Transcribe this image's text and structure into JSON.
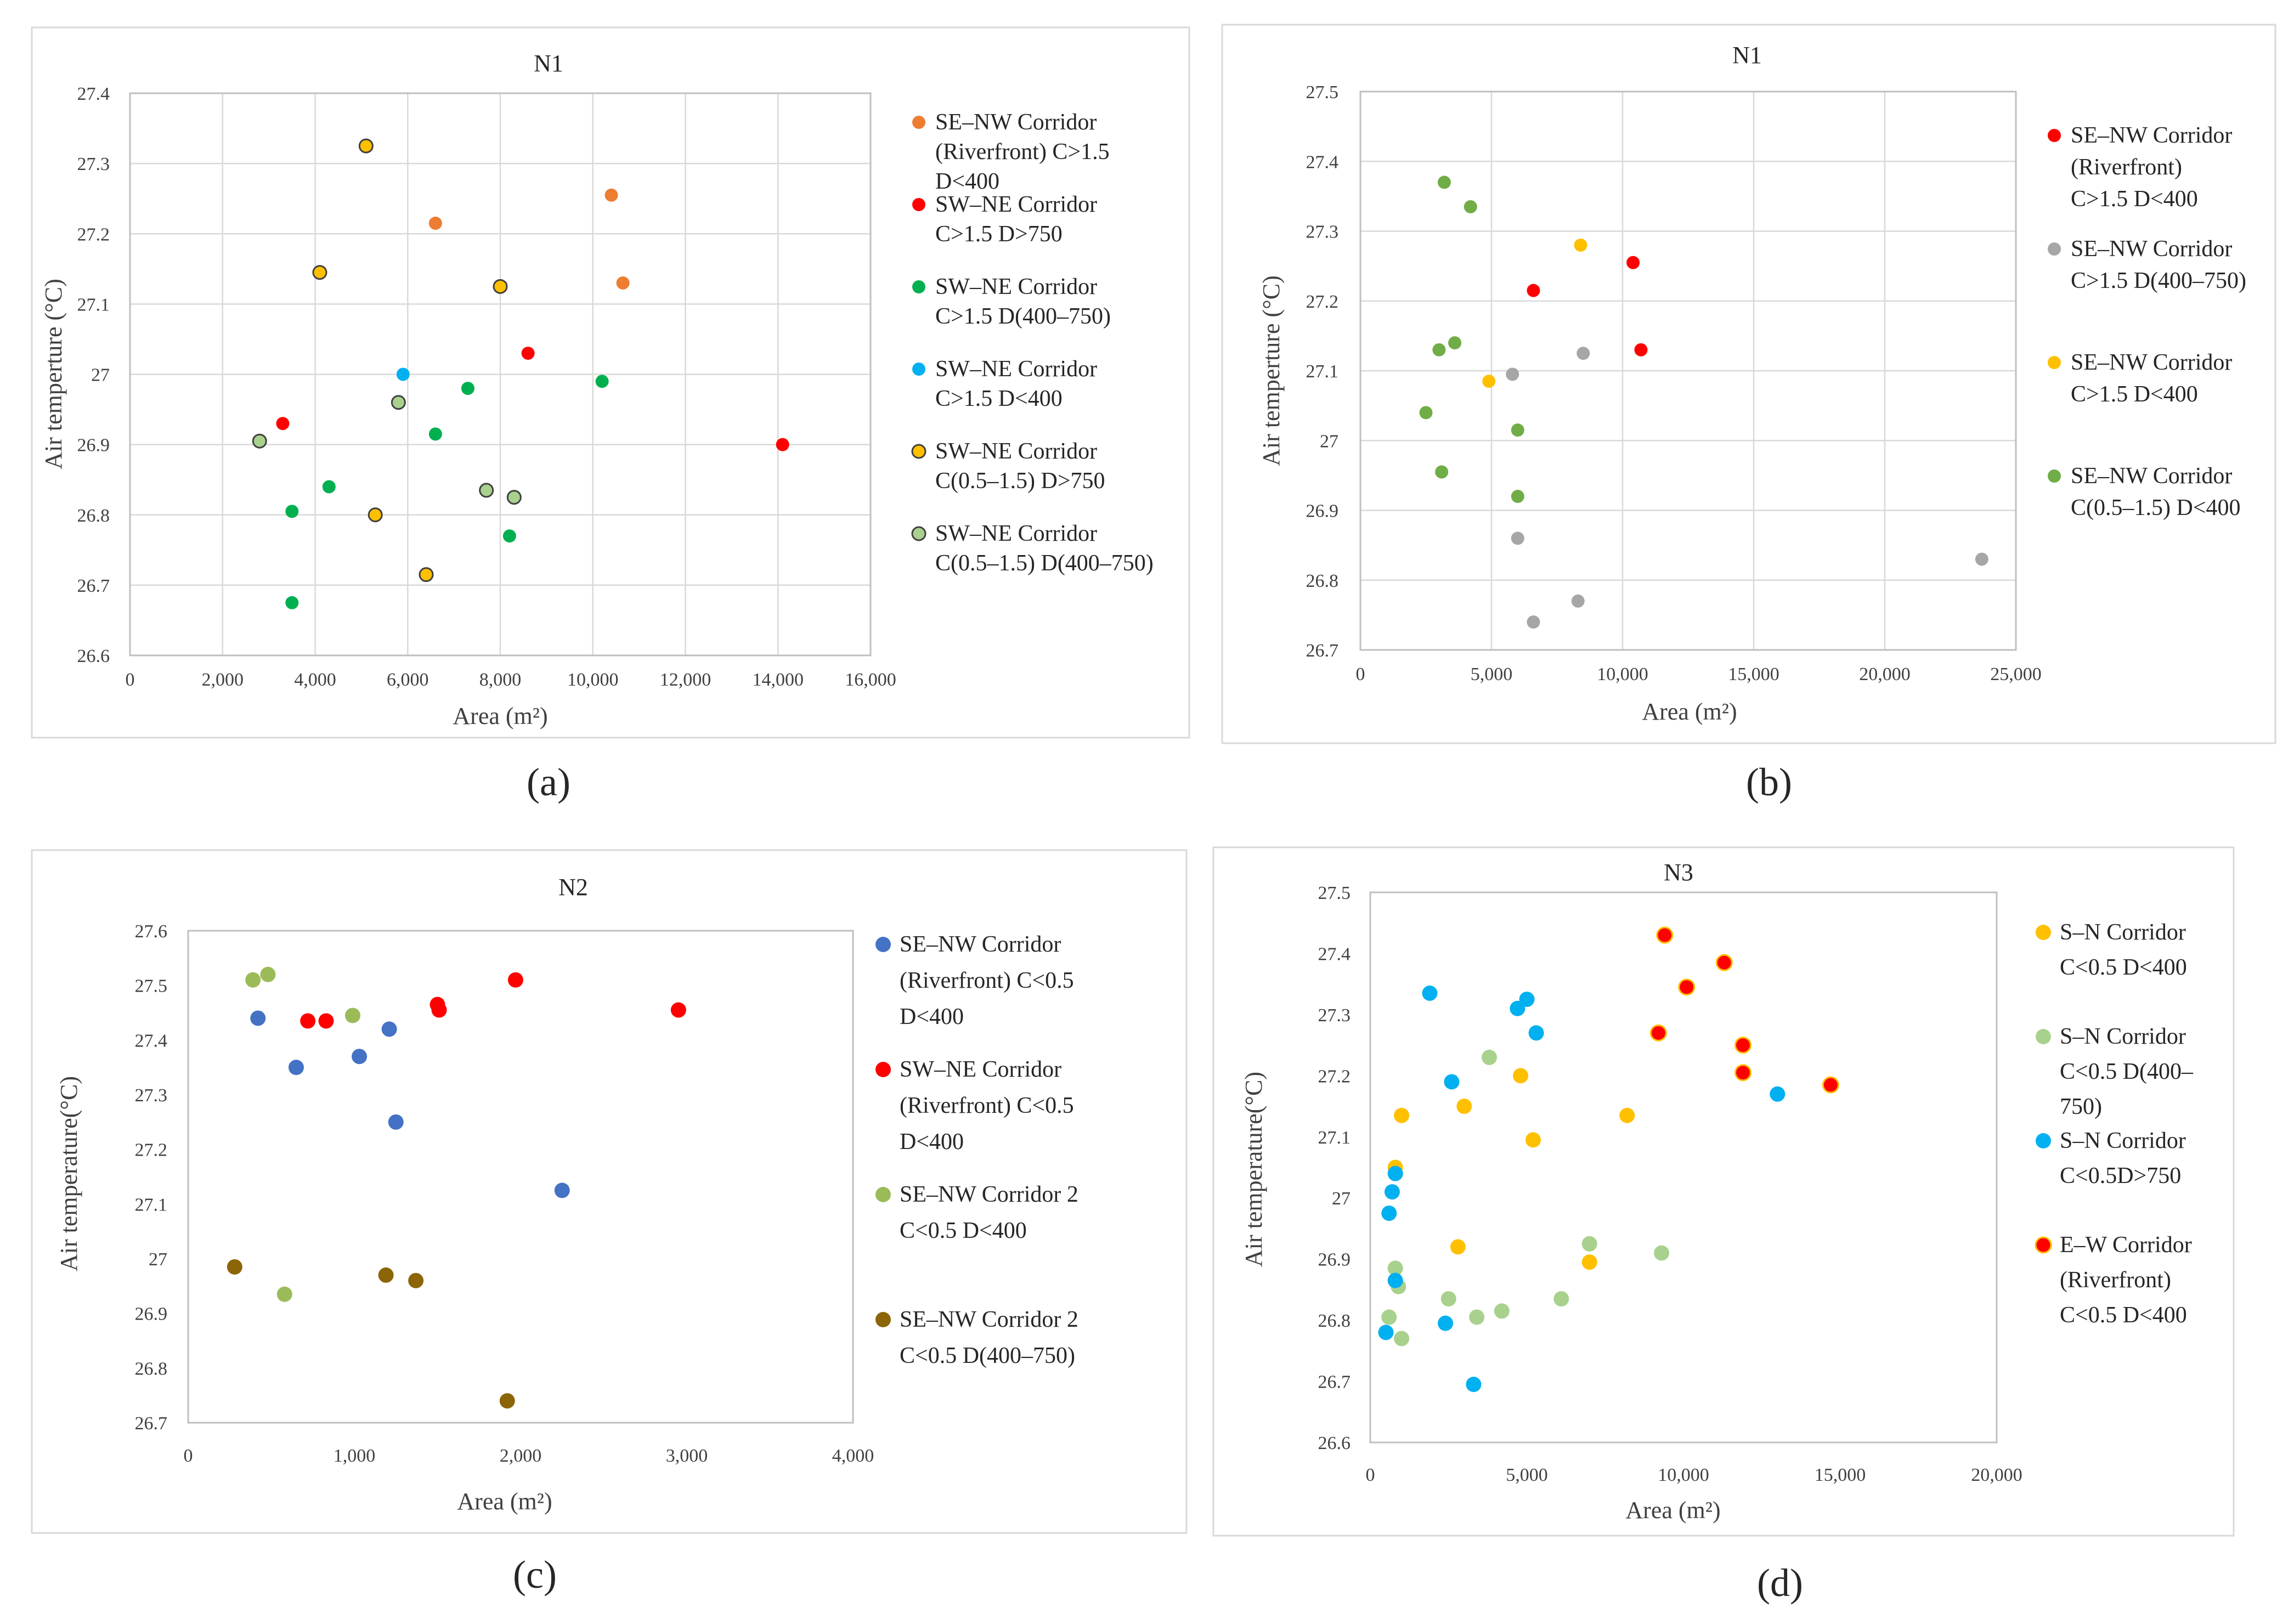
{
  "figure": {
    "captions": [
      "(a)",
      "(b)",
      "(c)",
      "(d)"
    ]
  },
  "chart_data": [
    {
      "type": "scatter",
      "caption": "(a)",
      "title": "N1",
      "xlabel": "Area  (m²)",
      "ylabel": "Air temperture (°C)",
      "xlim": [
        0,
        16000
      ],
      "ylim": [
        26.6,
        27.4
      ],
      "x_ticks": [
        0,
        2000,
        4000,
        6000,
        8000,
        10000,
        12000,
        14000,
        16000
      ],
      "x_tick_labels": [
        "0",
        "2,000",
        "4,000",
        "6,000",
        "8,000",
        "10,000",
        "12,000",
        "14,000",
        "16,000"
      ],
      "y_ticks": [
        26.6,
        26.7,
        26.8,
        26.9,
        27.0,
        27.1,
        27.2,
        27.3,
        27.4
      ],
      "y_tick_labels": [
        "26.6",
        "26.7",
        "26.8",
        "26.9",
        "27",
        "27.1",
        "27.2",
        "27.3",
        "27.4"
      ],
      "grid": true,
      "legend": "right",
      "series": [
        {
          "name": "SE–NW Corridor (Riverfront) C>1.5 D<400",
          "legend_lines": [
            "SE–NW Corridor",
            "(Riverfront) C>1.5",
            "D<400"
          ],
          "color": "#ED7D31",
          "edge": "none",
          "x": [
            6600,
            10400,
            10650
          ],
          "y": [
            27.215,
            27.255,
            27.13
          ]
        },
        {
          "name": "SW–NE Corridor C>1.5 D>750",
          "legend_lines": [
            "SW–NE Corridor",
            "C>1.5 D>750"
          ],
          "color": "#FF0000",
          "edge": "none",
          "x": [
            3300,
            8600,
            14100
          ],
          "y": [
            26.93,
            27.03,
            26.9
          ]
        },
        {
          "name": "SW–NE Corridor C>1.5 D(400–750)",
          "legend_lines": [
            "SW–NE Corridor",
            "C>1.5 D(400–750)"
          ],
          "color": "#00B050",
          "edge": "none",
          "x": [
            3500,
            3500,
            4300,
            6600,
            7300,
            8200,
            10200
          ],
          "y": [
            26.675,
            26.805,
            26.84,
            26.915,
            26.98,
            26.77,
            26.99
          ]
        },
        {
          "name": "SW–NE Corridor C>1.5 D<400",
          "legend_lines": [
            "SW–NE Corridor",
            "C>1.5 D<400"
          ],
          "color": "#00B0F0",
          "edge": "none",
          "x": [
            5900
          ],
          "y": [
            27.0
          ]
        },
        {
          "name": "SW–NE Corridor C(0.5–1.5) D>750",
          "legend_lines": [
            "SW–NE Corridor",
            "C(0.5–1.5) D>750"
          ],
          "color": "#FFC000",
          "edge": "#404040",
          "x": [
            4100,
            5100,
            5300,
            6400,
            8000
          ],
          "y": [
            27.145,
            27.325,
            26.8,
            26.715,
            27.125
          ]
        },
        {
          "name": "SW–NE Corridor C(0.5–1.5) D(400–750)",
          "legend_lines": [
            "SW–NE Corridor",
            "C(0.5–1.5) D(400–750)"
          ],
          "color": "#A9D18E",
          "edge": "#404040",
          "x": [
            2800,
            5800,
            7700,
            8300
          ],
          "y": [
            26.905,
            26.96,
            26.835,
            26.825
          ]
        }
      ]
    },
    {
      "type": "scatter",
      "caption": "(b)",
      "title": "N1",
      "xlabel": "Area  (m²)",
      "ylabel": "Air temperture (°C)",
      "xlim": [
        0,
        25000
      ],
      "ylim": [
        26.7,
        27.5
      ],
      "x_ticks": [
        0,
        5000,
        10000,
        15000,
        20000,
        25000
      ],
      "x_tick_labels": [
        "0",
        "5,000",
        "10,000",
        "15,000",
        "20,000",
        "25,000"
      ],
      "y_ticks": [
        26.7,
        26.8,
        26.9,
        27.0,
        27.1,
        27.2,
        27.3,
        27.4,
        27.5
      ],
      "y_tick_labels": [
        "26.7",
        "26.8",
        "26.9",
        "27",
        "27.1",
        "27.2",
        "27.3",
        "27.4",
        "27.5"
      ],
      "grid": true,
      "legend": "right",
      "series": [
        {
          "name": "SE–NW Corridor (Riverfront) C>1.5 D<400",
          "legend_lines": [
            "SE–NW Corridor",
            "(Riverfront)",
            "C>1.5 D<400"
          ],
          "color": "#FF0000",
          "edge": "none",
          "x": [
            6600,
            10400,
            10700
          ],
          "y": [
            27.215,
            27.255,
            27.13
          ]
        },
        {
          "name": "SE–NW Corridor C>1.5 D(400–750)",
          "legend_lines": [
            "SE–NW Corridor",
            "C>1.5 D(400–750)"
          ],
          "color": "#A6A6A6",
          "edge": "none",
          "x": [
            5800,
            6000,
            6600,
            8300,
            8500,
            23700
          ],
          "y": [
            27.095,
            26.86,
            26.74,
            26.77,
            27.125,
            26.83
          ]
        },
        {
          "name": "SE–NW Corridor C>1.5 D<400",
          "legend_lines": [
            "SE–NW Corridor",
            "C>1.5 D<400"
          ],
          "color": "#FFC000",
          "edge": "none",
          "x": [
            4900,
            8400
          ],
          "y": [
            27.085,
            27.28
          ]
        },
        {
          "name": "SE–NW Corridor C(0.5–1.5) D<400",
          "legend_lines": [
            "SE–NW Corridor",
            "C(0.5–1.5)  D<400"
          ],
          "color": "#70AD47",
          "edge": "none",
          "x": [
            2500,
            3000,
            3100,
            3200,
            3600,
            4200,
            6000,
            6000
          ],
          "y": [
            27.04,
            27.13,
            26.955,
            27.37,
            27.14,
            27.335,
            27.015,
            26.92
          ]
        }
      ]
    },
    {
      "type": "scatter",
      "caption": "(c)",
      "title": "N2",
      "xlabel": "Area  (m²)",
      "ylabel": "Air temperature(°C)",
      "xlim": [
        0,
        4000
      ],
      "ylim": [
        26.7,
        27.6
      ],
      "x_ticks": [
        0,
        1000,
        2000,
        3000,
        4000
      ],
      "x_tick_labels": [
        "0",
        "1,000",
        "2,000",
        "3,000",
        "4,000"
      ],
      "y_ticks": [
        26.7,
        26.8,
        26.9,
        27.0,
        27.1,
        27.2,
        27.3,
        27.4,
        27.5,
        27.6
      ],
      "y_tick_labels": [
        "26.7",
        "26.8",
        "26.9",
        "27",
        "27.1",
        "27.2",
        "27.3",
        "27.4",
        "27.5",
        "27.6"
      ],
      "grid": false,
      "legend": "right",
      "series": [
        {
          "name": "SE–NW Corridor (Riverfront) C<0.5 D<400",
          "legend_lines": [
            "SE–NW Corridor",
            "(Riverfront)     C<0.5",
            "D<400"
          ],
          "color": "#4472C4",
          "edge": "none",
          "x": [
            420,
            650,
            1030,
            1210,
            1250,
            2250
          ],
          "y": [
            27.44,
            27.35,
            27.37,
            27.42,
            27.25,
            27.125
          ]
        },
        {
          "name": "SW–NE Corridor (Riverfront) C<0.5 D<400",
          "legend_lines": [
            "SW–NE  Corridor",
            "(Riverfront)     C<0.5",
            "D<400"
          ],
          "color": "#FF0000",
          "edge": "none",
          "x": [
            720,
            830,
            1500,
            1510,
            1970,
            2950
          ],
          "y": [
            27.435,
            27.435,
            27.465,
            27.455,
            27.51,
            27.455
          ]
        },
        {
          "name": "SE–NW Corridor 2 C<0.5 D<400",
          "legend_lines": [
            "SE–NW  Corridor 2",
            "C<0.5 D<400"
          ],
          "color": "#9BBB59",
          "edge": "none",
          "x": [
            390,
            480,
            580,
            990
          ],
          "y": [
            27.51,
            27.52,
            26.935,
            27.445
          ]
        },
        {
          "name": "SE–NW Corridor 2 C<0.5 D(400–750)",
          "legend_lines": [
            "SE–NW  Corridor 2",
            "C<0.5 D(400–750)"
          ],
          "color": "#8B6508",
          "edge": "none",
          "x": [
            280,
            1190,
            1370,
            1920
          ],
          "y": [
            26.985,
            26.97,
            26.96,
            26.74
          ]
        }
      ]
    },
    {
      "type": "scatter",
      "caption": "(d)",
      "title": "N3",
      "xlabel": "Area  (m²)",
      "ylabel": "Air temperature(°C)",
      "xlim": [
        0,
        20000
      ],
      "ylim": [
        26.6,
        27.5
      ],
      "x_ticks": [
        0,
        5000,
        10000,
        15000,
        20000
      ],
      "x_tick_labels": [
        "0",
        "5,000",
        "10,000",
        "15,000",
        "20,000"
      ],
      "y_ticks": [
        26.6,
        26.7,
        26.8,
        26.9,
        27.0,
        27.1,
        27.2,
        27.3,
        27.4,
        27.5
      ],
      "y_tick_labels": [
        "26.6",
        "26.7",
        "26.8",
        "26.9",
        "27",
        "27.1",
        "27.2",
        "27.3",
        "27.4",
        "27.5"
      ],
      "grid": false,
      "legend": "right",
      "series": [
        {
          "name": "S–N Corridor C<0.5 D<400",
          "legend_lines": [
            "S–N Corridor",
            "C<0.5 D<400"
          ],
          "color": "#FFC000",
          "edge": "none",
          "x": [
            800,
            1000,
            2800,
            3000,
            4800,
            5200,
            7000,
            8200
          ],
          "y": [
            27.05,
            27.135,
            26.92,
            27.15,
            27.2,
            27.095,
            26.895,
            27.135
          ]
        },
        {
          "name": "S–N Corridor C<0.5 D(400–750)",
          "legend_lines": [
            "S–N Corridor",
            "C<0.5 D(400–",
            "750)"
          ],
          "color": "#A9D18E",
          "edge": "none",
          "x": [
            600,
            800,
            900,
            1000,
            2500,
            3400,
            3800,
            4200,
            6100,
            7000,
            9300
          ],
          "y": [
            26.805,
            26.885,
            26.855,
            26.77,
            26.835,
            26.805,
            27.23,
            26.815,
            26.835,
            26.925,
            26.91
          ]
        },
        {
          "name": "S–N Corridor C<0.5D>750",
          "legend_lines": [
            "S–N Corridor",
            "C<0.5D>750"
          ],
          "color": "#00B0F0",
          "edge": "none",
          "x": [
            500,
            600,
            700,
            800,
            800,
            1900,
            2400,
            2600,
            3300,
            4700,
            5000,
            5300,
            13000
          ],
          "y": [
            26.78,
            26.975,
            27.01,
            26.865,
            27.04,
            27.335,
            26.795,
            27.19,
            26.695,
            27.31,
            27.325,
            27.27,
            27.17
          ]
        },
        {
          "name": "E–W Corridor (Riverfront) C<0.5 D<400",
          "legend_lines": [
            "E–W Corridor",
            "(Riverfront)",
            "C<0.5 D<400"
          ],
          "color": "#FF0000",
          "edge": "#FFC000",
          "x": [
            9200,
            9400,
            10100,
            11300,
            11900,
            11900,
            14700
          ],
          "y": [
            27.27,
            27.43,
            27.345,
            27.385,
            27.25,
            27.205,
            27.185
          ]
        }
      ]
    }
  ]
}
